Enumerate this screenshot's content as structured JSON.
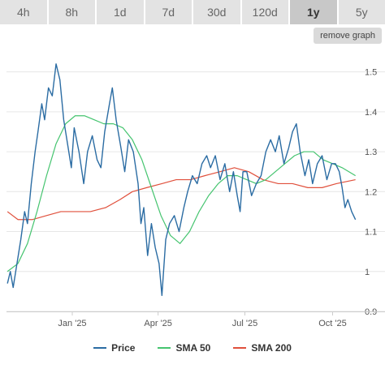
{
  "tabs": [
    {
      "label": "4h",
      "active": false
    },
    {
      "label": "8h",
      "active": false
    },
    {
      "label": "1d",
      "active": false
    },
    {
      "label": "7d",
      "active": false
    },
    {
      "label": "30d",
      "active": false
    },
    {
      "label": "120d",
      "active": false
    },
    {
      "label": "1y",
      "active": true
    },
    {
      "label": "5y",
      "active": false
    }
  ],
  "remove_graph_label": "remove graph",
  "colors": {
    "price": "#2b6ca3",
    "sma50": "#45c46f",
    "sma200": "#e0503c"
  },
  "legend": [
    {
      "label": "Price",
      "color": "#2b6ca3"
    },
    {
      "label": "SMA 50",
      "color": "#45c46f"
    },
    {
      "label": "SMA 200",
      "color": "#e0503c"
    }
  ],
  "chart_data": {
    "type": "line",
    "x_ticks": [
      "Jan '25",
      "Apr '25",
      "Jul '25",
      "Oct '25"
    ],
    "y_ticks": [
      "0.9",
      "1",
      "1.1",
      "1.2",
      "1.3",
      "1.4",
      "1.5"
    ],
    "ylim": [
      0.9,
      1.55
    ],
    "grid": true,
    "legend_position": "bottom",
    "series": [
      {
        "name": "Price",
        "key": "price",
        "points": [
          [
            "2024-10-25",
            0.97
          ],
          [
            "2024-10-28",
            1.0
          ],
          [
            "2024-10-31",
            0.96
          ],
          [
            "2024-11-04",
            1.02
          ],
          [
            "2024-11-08",
            1.08
          ],
          [
            "2024-11-12",
            1.15
          ],
          [
            "2024-11-15",
            1.12
          ],
          [
            "2024-11-19",
            1.22
          ],
          [
            "2024-11-23",
            1.3
          ],
          [
            "2024-11-26",
            1.35
          ],
          [
            "2024-11-30",
            1.42
          ],
          [
            "2024-12-03",
            1.38
          ],
          [
            "2024-12-07",
            1.46
          ],
          [
            "2024-12-11",
            1.44
          ],
          [
            "2024-12-15",
            1.52
          ],
          [
            "2024-12-19",
            1.48
          ],
          [
            "2024-12-23",
            1.38
          ],
          [
            "2024-12-27",
            1.32
          ],
          [
            "2024-12-31",
            1.26
          ],
          [
            "2025-01-03",
            1.36
          ],
          [
            "2025-01-08",
            1.3
          ],
          [
            "2025-01-13",
            1.22
          ],
          [
            "2025-01-17",
            1.3
          ],
          [
            "2025-01-22",
            1.34
          ],
          [
            "2025-01-27",
            1.28
          ],
          [
            "2025-01-31",
            1.26
          ],
          [
            "2025-02-04",
            1.35
          ],
          [
            "2025-02-09",
            1.42
          ],
          [
            "2025-02-12",
            1.46
          ],
          [
            "2025-02-16",
            1.38
          ],
          [
            "2025-02-21",
            1.31
          ],
          [
            "2025-02-25",
            1.25
          ],
          [
            "2025-03-01",
            1.33
          ],
          [
            "2025-03-06",
            1.3
          ],
          [
            "2025-03-11",
            1.22
          ],
          [
            "2025-03-14",
            1.12
          ],
          [
            "2025-03-17",
            1.16
          ],
          [
            "2025-03-21",
            1.04
          ],
          [
            "2025-03-25",
            1.12
          ],
          [
            "2025-03-29",
            1.06
          ],
          [
            "2025-04-02",
            1.02
          ],
          [
            "2025-04-05",
            0.94
          ],
          [
            "2025-04-09",
            1.08
          ],
          [
            "2025-04-13",
            1.12
          ],
          [
            "2025-04-18",
            1.14
          ],
          [
            "2025-04-23",
            1.1
          ],
          [
            "2025-04-28",
            1.16
          ],
          [
            "2025-05-02",
            1.2
          ],
          [
            "2025-05-07",
            1.24
          ],
          [
            "2025-05-12",
            1.22
          ],
          [
            "2025-05-17",
            1.27
          ],
          [
            "2025-05-22",
            1.29
          ],
          [
            "2025-05-26",
            1.26
          ],
          [
            "2025-05-31",
            1.29
          ],
          [
            "2025-06-05",
            1.23
          ],
          [
            "2025-06-10",
            1.27
          ],
          [
            "2025-06-15",
            1.2
          ],
          [
            "2025-06-19",
            1.25
          ],
          [
            "2025-06-23",
            1.19
          ],
          [
            "2025-06-26",
            1.15
          ],
          [
            "2025-06-29",
            1.25
          ],
          [
            "2025-07-03",
            1.25
          ],
          [
            "2025-07-08",
            1.19
          ],
          [
            "2025-07-13",
            1.22
          ],
          [
            "2025-07-18",
            1.24
          ],
          [
            "2025-07-23",
            1.3
          ],
          [
            "2025-07-28",
            1.33
          ],
          [
            "2025-08-02",
            1.3
          ],
          [
            "2025-08-06",
            1.34
          ],
          [
            "2025-08-11",
            1.27
          ],
          [
            "2025-08-16",
            1.31
          ],
          [
            "2025-08-20",
            1.35
          ],
          [
            "2025-08-24",
            1.37
          ],
          [
            "2025-08-28",
            1.3
          ],
          [
            "2025-09-02",
            1.24
          ],
          [
            "2025-09-06",
            1.28
          ],
          [
            "2025-09-10",
            1.22
          ],
          [
            "2025-09-15",
            1.27
          ],
          [
            "2025-09-20",
            1.29
          ],
          [
            "2025-09-25",
            1.23
          ],
          [
            "2025-09-30",
            1.27
          ],
          [
            "2025-10-04",
            1.27
          ],
          [
            "2025-10-08",
            1.25
          ],
          [
            "2025-10-11",
            1.21
          ],
          [
            "2025-10-14",
            1.16
          ],
          [
            "2025-10-17",
            1.18
          ],
          [
            "2025-10-21",
            1.15
          ],
          [
            "2025-10-25",
            1.13
          ]
        ]
      },
      {
        "name": "SMA 50",
        "key": "sma50",
        "points": [
          [
            "2024-10-25",
            1.0
          ],
          [
            "2024-11-05",
            1.02
          ],
          [
            "2024-11-15",
            1.07
          ],
          [
            "2024-11-25",
            1.15
          ],
          [
            "2024-12-05",
            1.24
          ],
          [
            "2024-12-15",
            1.32
          ],
          [
            "2024-12-25",
            1.37
          ],
          [
            "2025-01-04",
            1.39
          ],
          [
            "2025-01-14",
            1.39
          ],
          [
            "2025-01-24",
            1.38
          ],
          [
            "2025-02-03",
            1.37
          ],
          [
            "2025-02-13",
            1.37
          ],
          [
            "2025-02-23",
            1.36
          ],
          [
            "2025-03-05",
            1.33
          ],
          [
            "2025-03-15",
            1.28
          ],
          [
            "2025-03-25",
            1.21
          ],
          [
            "2025-04-04",
            1.14
          ],
          [
            "2025-04-14",
            1.09
          ],
          [
            "2025-04-24",
            1.07
          ],
          [
            "2025-05-04",
            1.1
          ],
          [
            "2025-05-14",
            1.15
          ],
          [
            "2025-05-24",
            1.19
          ],
          [
            "2025-06-03",
            1.22
          ],
          [
            "2025-06-13",
            1.24
          ],
          [
            "2025-06-23",
            1.24
          ],
          [
            "2025-07-03",
            1.23
          ],
          [
            "2025-07-13",
            1.22
          ],
          [
            "2025-07-23",
            1.23
          ],
          [
            "2025-08-02",
            1.25
          ],
          [
            "2025-08-12",
            1.27
          ],
          [
            "2025-08-22",
            1.29
          ],
          [
            "2025-09-01",
            1.3
          ],
          [
            "2025-09-11",
            1.3
          ],
          [
            "2025-09-21",
            1.28
          ],
          [
            "2025-10-01",
            1.27
          ],
          [
            "2025-10-11",
            1.26
          ],
          [
            "2025-10-25",
            1.24
          ]
        ]
      },
      {
        "name": "SMA 200",
        "key": "sma200",
        "points": [
          [
            "2024-10-25",
            1.15
          ],
          [
            "2024-11-05",
            1.13
          ],
          [
            "2024-11-20",
            1.13
          ],
          [
            "2024-12-05",
            1.14
          ],
          [
            "2024-12-20",
            1.15
          ],
          [
            "2025-01-05",
            1.15
          ],
          [
            "2025-01-20",
            1.15
          ],
          [
            "2025-02-05",
            1.16
          ],
          [
            "2025-02-20",
            1.18
          ],
          [
            "2025-03-05",
            1.2
          ],
          [
            "2025-03-20",
            1.21
          ],
          [
            "2025-04-05",
            1.22
          ],
          [
            "2025-04-20",
            1.23
          ],
          [
            "2025-05-05",
            1.23
          ],
          [
            "2025-05-20",
            1.24
          ],
          [
            "2025-06-05",
            1.25
          ],
          [
            "2025-06-20",
            1.26
          ],
          [
            "2025-07-05",
            1.25
          ],
          [
            "2025-07-20",
            1.23
          ],
          [
            "2025-08-05",
            1.22
          ],
          [
            "2025-08-20",
            1.22
          ],
          [
            "2025-09-05",
            1.21
          ],
          [
            "2025-09-20",
            1.21
          ],
          [
            "2025-10-05",
            1.22
          ],
          [
            "2025-10-25",
            1.23
          ]
        ]
      }
    ]
  }
}
